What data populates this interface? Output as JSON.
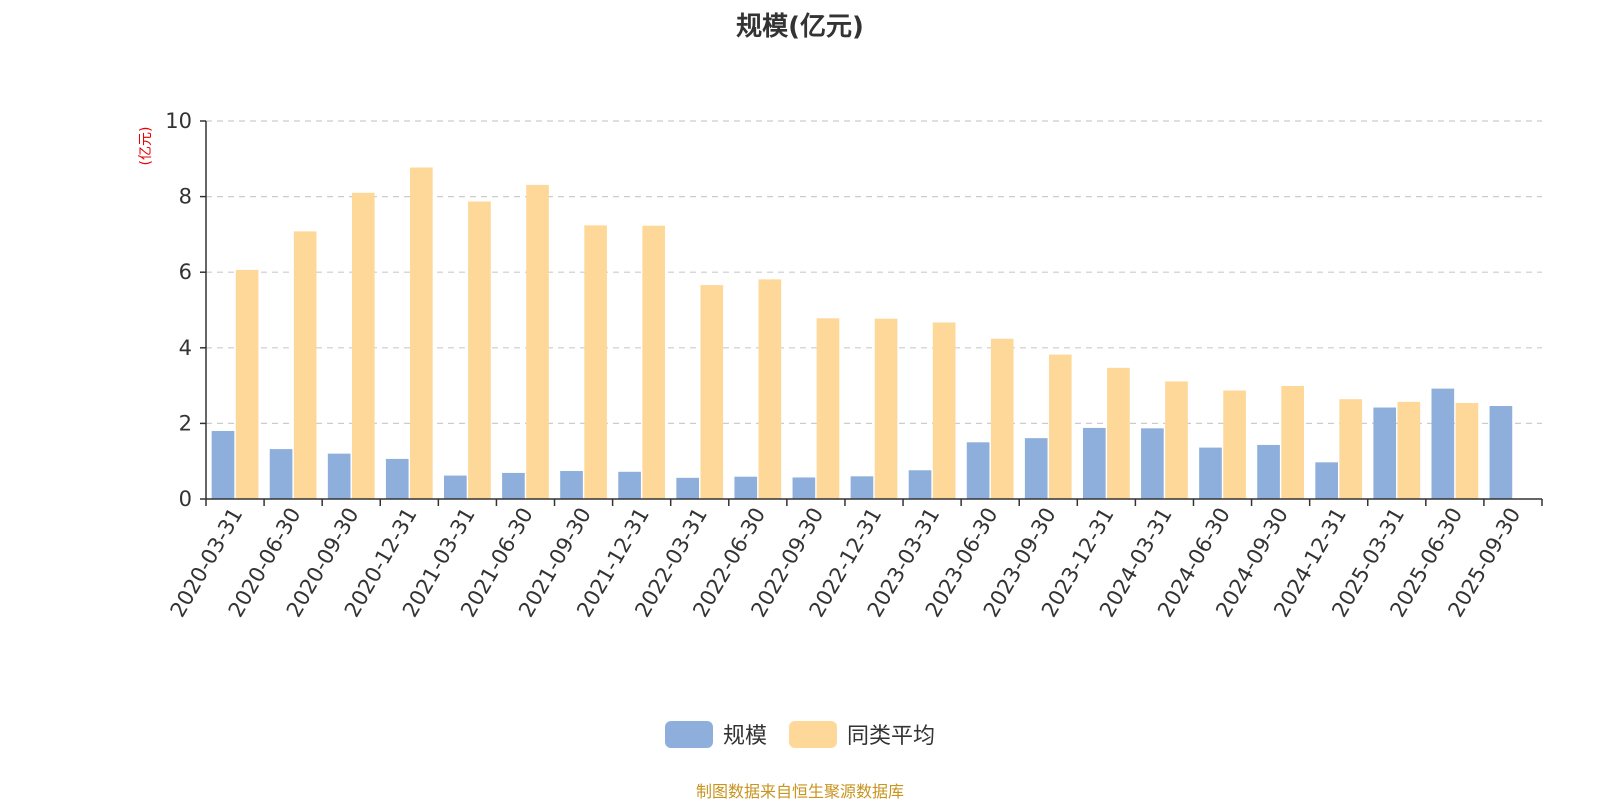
{
  "chart_data": {
    "type": "bar",
    "title": "规模(亿元)",
    "ylabel": "(亿元)",
    "xlabel": "",
    "ylim": [
      0,
      10
    ],
    "yticks": [
      0,
      2,
      4,
      6,
      8,
      10
    ],
    "grid": true,
    "legend_position": "bottom",
    "categories": [
      "2020-03-31",
      "2020-06-30",
      "2020-09-30",
      "2020-12-31",
      "2021-03-31",
      "2021-06-30",
      "2021-09-30",
      "2021-12-31",
      "2022-03-31",
      "2022-06-30",
      "2022-09-30",
      "2022-12-31",
      "2023-03-31",
      "2023-06-30",
      "2023-09-30",
      "2023-12-31",
      "2024-03-31",
      "2024-06-30",
      "2024-09-30",
      "2024-12-31",
      "2025-03-31",
      "2025-06-30",
      "2025-09-30"
    ],
    "series": [
      {
        "name": "规模",
        "color": "#8eaedc",
        "values": [
          1.8,
          1.32,
          1.2,
          1.06,
          0.62,
          0.69,
          0.74,
          0.72,
          0.56,
          0.59,
          0.57,
          0.6,
          0.76,
          1.5,
          1.61,
          1.88,
          1.87,
          1.36,
          1.43,
          0.97,
          2.42,
          2.92,
          2.46
        ]
      },
      {
        "name": "同类平均",
        "color": "#fdd898",
        "values": [
          6.06,
          7.08,
          8.1,
          8.77,
          7.87,
          8.31,
          7.24,
          7.23,
          5.66,
          5.81,
          4.78,
          4.77,
          4.67,
          4.24,
          3.82,
          3.47,
          3.11,
          2.87,
          2.99,
          2.64,
          2.57,
          2.54,
          null
        ]
      }
    ]
  },
  "footer": {
    "source": "制图数据来自恒生聚源数据库"
  }
}
